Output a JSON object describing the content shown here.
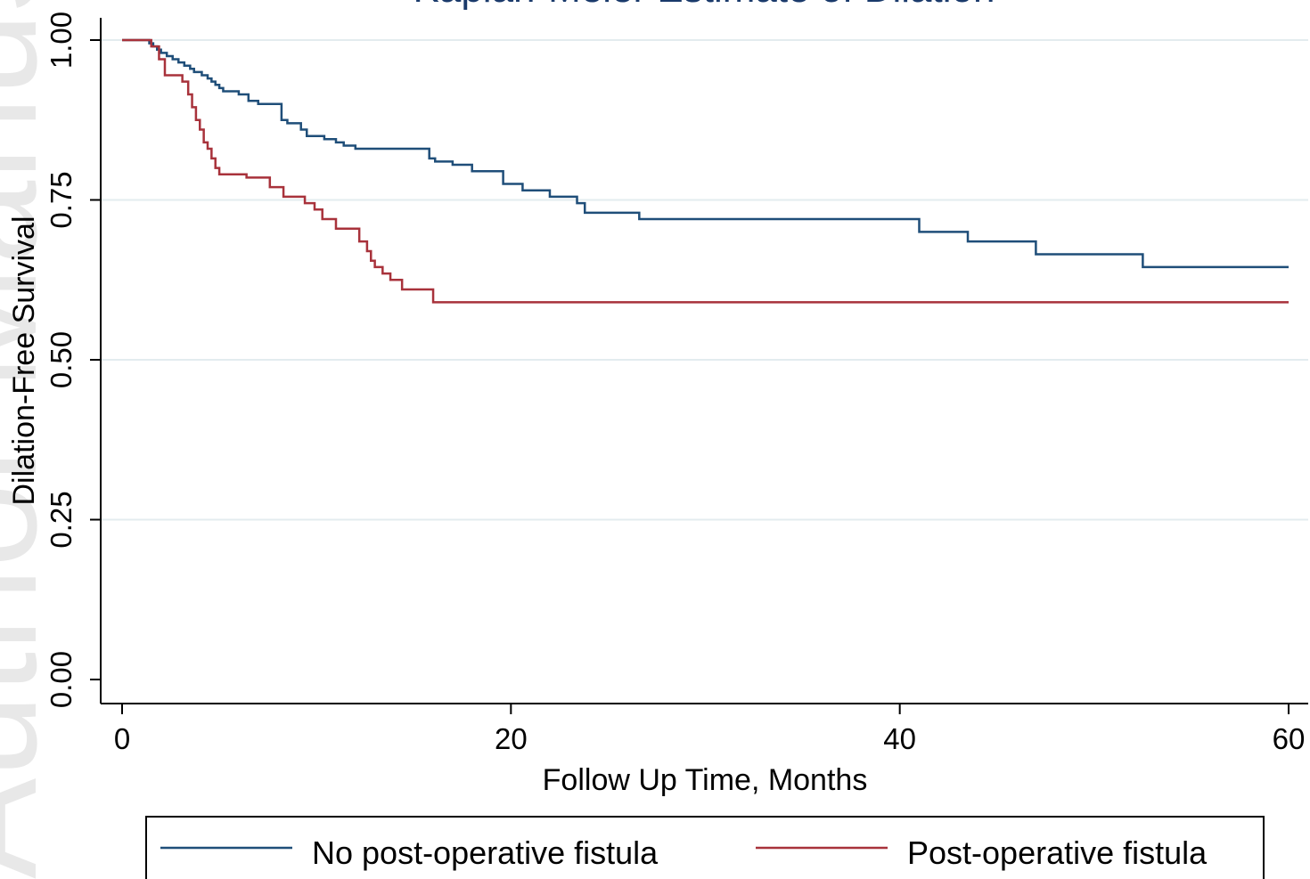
{
  "chart_data": {
    "type": "line",
    "step": true,
    "title": "Kaplan-Meier Estimate of Dilation",
    "xlabel": "Follow Up Time, Months",
    "ylabel": "Dilation-Free Survival",
    "xlim": [
      0,
      60
    ],
    "ylim": [
      0,
      1
    ],
    "xticks": [
      0,
      20,
      40,
      60
    ],
    "yticks": [
      0.0,
      0.25,
      0.5,
      0.75,
      1.0
    ],
    "xtick_labels": [
      "0",
      "20",
      "40",
      "60"
    ],
    "ytick_labels": [
      "0.00",
      "0.25",
      "0.50",
      "0.75",
      "1.00"
    ],
    "grid": true,
    "legend_position": "bottom",
    "series": [
      {
        "name": "No post-operative fistula",
        "color": "#1f4e79",
        "x": [
          0,
          1.4,
          1.6,
          1.8,
          2.0,
          2.3,
          2.6,
          2.9,
          3.2,
          3.5,
          3.7,
          4.1,
          4.4,
          4.6,
          4.8,
          5.0,
          5.2,
          6.0,
          6.5,
          7.0,
          8.2,
          8.5,
          9.2,
          9.5,
          10.4,
          11.0,
          11.4,
          12.0,
          12.5,
          15.8,
          16.1,
          17.0,
          18.0,
          19.6,
          20.6,
          22.0,
          23.4,
          23.8,
          26.6,
          41.0,
          43.5,
          47.0,
          52.5,
          60.0
        ],
        "y": [
          1.0,
          0.995,
          0.99,
          0.985,
          0.98,
          0.975,
          0.97,
          0.965,
          0.96,
          0.955,
          0.95,
          0.945,
          0.94,
          0.935,
          0.93,
          0.925,
          0.92,
          0.915,
          0.905,
          0.9,
          0.875,
          0.87,
          0.86,
          0.85,
          0.845,
          0.84,
          0.835,
          0.83,
          0.83,
          0.815,
          0.81,
          0.805,
          0.795,
          0.775,
          0.765,
          0.755,
          0.745,
          0.73,
          0.72,
          0.7,
          0.685,
          0.665,
          0.645,
          0.645
        ]
      },
      {
        "name": "Post-operative fistula",
        "color": "#a8323b",
        "x": [
          0,
          1.5,
          1.9,
          2.2,
          3.1,
          3.4,
          3.6,
          3.8,
          4.0,
          4.2,
          4.4,
          4.6,
          4.8,
          5.0,
          6.4,
          7.6,
          8.3,
          9.4,
          9.9,
          10.3,
          11.0,
          12.2,
          12.6,
          12.8,
          13.0,
          13.4,
          13.8,
          14.4,
          16.0,
          60.0
        ],
        "y": [
          1.0,
          0.99,
          0.97,
          0.945,
          0.935,
          0.915,
          0.895,
          0.875,
          0.86,
          0.84,
          0.83,
          0.815,
          0.8,
          0.79,
          0.785,
          0.77,
          0.755,
          0.745,
          0.735,
          0.72,
          0.705,
          0.685,
          0.67,
          0.655,
          0.645,
          0.635,
          0.625,
          0.61,
          0.59,
          0.59
        ]
      }
    ]
  },
  "watermark_text": "Author Manuscript"
}
